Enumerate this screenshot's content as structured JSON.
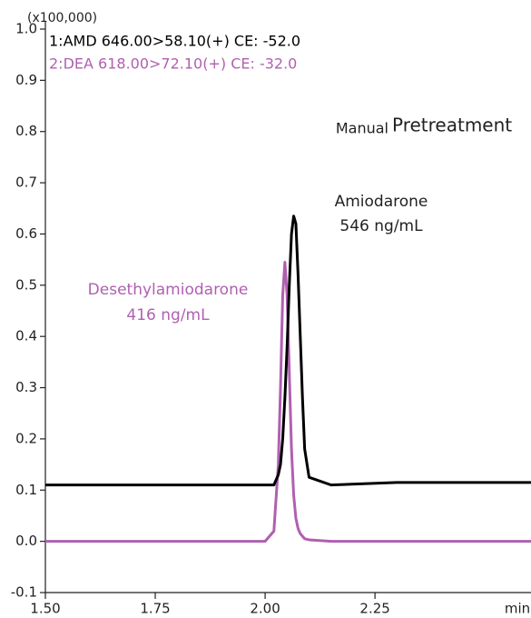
{
  "chart_data": {
    "type": "line",
    "y_multiplier": "(x100,000)",
    "x_unit": "min",
    "xlim": [
      1.5,
      2.605
    ],
    "ylim": [
      -0.1,
      1.0
    ],
    "xticks": [
      {
        "value": 1.5,
        "label": "1.50"
      },
      1.75,
      {
        "value": 2.0,
        "label": "2.00"
      },
      2.25
    ],
    "yticks": [
      -0.1,
      {
        "value": 0.0,
        "label": "0.0"
      },
      0.1,
      0.2,
      0.3,
      0.4,
      0.5,
      0.6,
      0.7,
      0.8,
      0.9,
      {
        "value": 1.0,
        "label": "1.0"
      }
    ],
    "x": [
      1.5,
      2.0,
      2.02,
      2.03,
      2.035,
      2.04,
      2.045,
      2.05,
      2.055,
      2.06,
      2.065,
      2.07,
      2.075,
      2.08,
      2.085,
      2.09,
      2.1,
      2.15,
      2.3,
      2.605
    ],
    "series": [
      {
        "name": "1:AMD 646.00>58.10(+) CE: -52.0",
        "color": "#000000",
        "values": [
          0.11,
          0.11,
          0.11,
          0.13,
          0.15,
          0.2,
          0.28,
          0.38,
          0.5,
          0.6,
          0.635,
          0.62,
          0.52,
          0.4,
          0.28,
          0.18,
          0.125,
          0.11,
          0.115,
          0.115
        ]
      },
      {
        "name": "2:DEA 618.00>72.10(+) CE: -32.0",
        "color": "#b060b0",
        "values": [
          0.0,
          0.0,
          0.02,
          0.15,
          0.3,
          0.48,
          0.545,
          0.48,
          0.33,
          0.18,
          0.09,
          0.045,
          0.025,
          0.015,
          0.01,
          0.005,
          0.003,
          0.0,
          0.0,
          0.0
        ]
      }
    ],
    "title": {
      "small": "Manual",
      "large": "Pretreatment"
    },
    "annotations": [
      {
        "lines": [
          "Amiodarone",
          "546 ng/mL"
        ],
        "color": "#231f20"
      },
      {
        "lines": [
          "Desethylamiodarone",
          "416 ng/mL"
        ],
        "color": "#b060b0"
      }
    ]
  }
}
